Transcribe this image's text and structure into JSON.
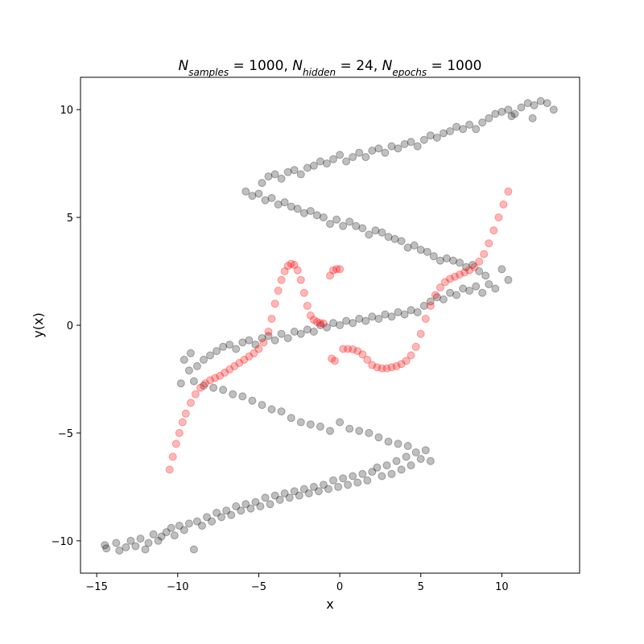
{
  "chart_data": {
    "type": "scatter",
    "title": {
      "parts": [
        {
          "base": "N",
          "sub": "samples",
          "eq": " = 1000, "
        },
        {
          "base": "N",
          "sub": "hidden",
          "eq": " = 24, "
        },
        {
          "base": "N",
          "sub": "epochs",
          "eq": " = 1000"
        }
      ]
    },
    "xlabel": "x",
    "ylabel": "y(x)",
    "xlim": [
      -16,
      14.8
    ],
    "ylim": [
      -11.5,
      11.5
    ],
    "xticks": [
      -15,
      -10,
      -5,
      0,
      5,
      10
    ],
    "yticks": [
      -10,
      -5,
      0,
      5,
      10
    ],
    "xtick_labels": [
      "−15",
      "−10",
      "−5",
      "0",
      "5",
      "10"
    ],
    "ytick_labels": [
      "−10",
      "−5",
      "0",
      "5",
      "10"
    ],
    "grid": false,
    "series": [
      {
        "color": "#000000",
        "alpha": 0.25,
        "points": [
          [
            -14.5,
            -10.2
          ],
          [
            -14.4,
            -10.35
          ],
          [
            -13.8,
            -10.1
          ],
          [
            -13.6,
            -10.45
          ],
          [
            -13.2,
            -10.3
          ],
          [
            -12.9,
            -10.0
          ],
          [
            -12.6,
            -10.25
          ],
          [
            -12.3,
            -9.9
          ],
          [
            -12.0,
            -10.4
          ],
          [
            -11.8,
            -10.1
          ],
          [
            -11.5,
            -9.7
          ],
          [
            -11.2,
            -10.0
          ],
          [
            -11.0,
            -9.8
          ],
          [
            -10.7,
            -9.6
          ],
          [
            -10.4,
            -9.4
          ],
          [
            -10.2,
            -9.75
          ],
          [
            -9.9,
            -9.3
          ],
          [
            -9.6,
            -9.5
          ],
          [
            -9.3,
            -9.2
          ],
          [
            -9.0,
            -10.4
          ],
          [
            -8.8,
            -9.1
          ],
          [
            -8.5,
            -9.3
          ],
          [
            -8.2,
            -8.9
          ],
          [
            -7.9,
            -9.1
          ],
          [
            -7.6,
            -8.7
          ],
          [
            -7.3,
            -8.9
          ],
          [
            -7.0,
            -8.6
          ],
          [
            -6.7,
            -8.8
          ],
          [
            -6.4,
            -8.4
          ],
          [
            -6.1,
            -8.6
          ],
          [
            -5.8,
            -8.3
          ],
          [
            -5.5,
            -8.5
          ],
          [
            -5.2,
            -8.2
          ],
          [
            -4.9,
            -8.4
          ],
          [
            -4.6,
            -8.0
          ],
          [
            -4.3,
            -8.3
          ],
          [
            -4.0,
            -7.9
          ],
          [
            -3.7,
            -8.1
          ],
          [
            -3.4,
            -7.8
          ],
          [
            -3.1,
            -8.0
          ],
          [
            -2.8,
            -7.7
          ],
          [
            -2.5,
            -7.9
          ],
          [
            -2.2,
            -7.6
          ],
          [
            -1.9,
            -7.8
          ],
          [
            -1.6,
            -7.5
          ],
          [
            -1.3,
            -7.7
          ],
          [
            -1.0,
            -7.4
          ],
          [
            -0.7,
            -7.6
          ],
          [
            -0.4,
            -7.2
          ],
          [
            -0.1,
            -7.5
          ],
          [
            0.2,
            -7.1
          ],
          [
            0.5,
            -7.4
          ],
          [
            0.8,
            -7.0
          ],
          [
            1.1,
            -7.3
          ],
          [
            1.4,
            -6.9
          ],
          [
            1.7,
            -7.2
          ],
          [
            2.0,
            -6.8
          ],
          [
            2.3,
            -6.6
          ],
          [
            2.6,
            -7.0
          ],
          [
            2.9,
            -6.5
          ],
          [
            3.2,
            -6.9
          ],
          [
            3.5,
            -6.3
          ],
          [
            3.8,
            -6.7
          ],
          [
            4.1,
            -6.1
          ],
          [
            4.4,
            -6.5
          ],
          [
            4.7,
            -5.9
          ],
          [
            5.0,
            -6.2
          ],
          [
            5.3,
            -5.8
          ],
          [
            5.6,
            -6.3
          ],
          [
            4.2,
            -5.6
          ],
          [
            3.6,
            -5.5
          ],
          [
            3.0,
            -5.4
          ],
          [
            2.4,
            -5.2
          ],
          [
            1.8,
            -5.0
          ],
          [
            1.2,
            -4.9
          ],
          [
            0.6,
            -4.8
          ],
          [
            0.0,
            -4.5
          ],
          [
            -0.6,
            -4.9
          ],
          [
            -1.2,
            -4.7
          ],
          [
            -1.8,
            -4.6
          ],
          [
            -2.4,
            -4.5
          ],
          [
            -3.0,
            -4.3
          ],
          [
            -3.6,
            -4.0
          ],
          [
            -4.2,
            -3.9
          ],
          [
            -4.8,
            -3.7
          ],
          [
            -5.4,
            -3.5
          ],
          [
            -6.0,
            -3.3
          ],
          [
            -6.6,
            -3.2
          ],
          [
            -7.2,
            -3.0
          ],
          [
            -7.8,
            -2.9
          ],
          [
            -8.4,
            -2.8
          ],
          [
            -9.0,
            -2.6
          ],
          [
            -9.3,
            -2.1
          ],
          [
            -9.8,
            -2.7
          ],
          [
            -9.6,
            -1.6
          ],
          [
            -9.2,
            -1.3
          ],
          [
            -8.8,
            -1.9
          ],
          [
            -8.4,
            -1.6
          ],
          [
            -8.0,
            -1.4
          ],
          [
            -7.6,
            -1.2
          ],
          [
            -7.2,
            -1.0
          ],
          [
            -6.8,
            -0.9
          ],
          [
            -6.4,
            -1.1
          ],
          [
            -6.0,
            -0.8
          ],
          [
            -5.6,
            -0.7
          ],
          [
            -5.2,
            -0.9
          ],
          [
            -4.8,
            -0.6
          ],
          [
            -4.4,
            -0.5
          ],
          [
            -4.0,
            -0.7
          ],
          [
            -3.6,
            -0.4
          ],
          [
            -3.2,
            -0.6
          ],
          [
            -2.8,
            -0.3
          ],
          [
            -2.4,
            -0.4
          ],
          [
            -2.0,
            -0.2
          ],
          [
            -1.6,
            -0.3
          ],
          [
            -1.2,
            0.0
          ],
          [
            -0.8,
            -0.1
          ],
          [
            -0.4,
            0.1
          ],
          [
            0.0,
            0.0
          ],
          [
            0.4,
            0.2
          ],
          [
            0.8,
            0.1
          ],
          [
            1.2,
            0.3
          ],
          [
            1.6,
            0.2
          ],
          [
            2.0,
            0.4
          ],
          [
            2.4,
            0.3
          ],
          [
            2.8,
            0.5
          ],
          [
            3.2,
            0.4
          ],
          [
            3.6,
            0.6
          ],
          [
            4.0,
            0.5
          ],
          [
            4.4,
            0.7
          ],
          [
            4.8,
            0.6
          ],
          [
            5.2,
            0.9
          ],
          [
            5.6,
            1.1
          ],
          [
            6.0,
            1.3
          ],
          [
            6.4,
            1.2
          ],
          [
            6.8,
            1.5
          ],
          [
            7.2,
            1.4
          ],
          [
            7.6,
            1.7
          ],
          [
            8.0,
            1.6
          ],
          [
            8.4,
            1.8
          ],
          [
            8.8,
            1.5
          ],
          [
            9.2,
            1.9
          ],
          [
            9.6,
            1.7
          ],
          [
            10.0,
            2.6
          ],
          [
            10.4,
            2.1
          ],
          [
            9.0,
            2.3
          ],
          [
            8.6,
            2.5
          ],
          [
            8.2,
            2.8
          ],
          [
            7.8,
            2.7
          ],
          [
            7.4,
            2.9
          ],
          [
            7.0,
            3.0
          ],
          [
            6.6,
            3.1
          ],
          [
            6.2,
            3.0
          ],
          [
            5.8,
            3.2
          ],
          [
            5.4,
            3.4
          ],
          [
            5.0,
            3.5
          ],
          [
            4.6,
            3.7
          ],
          [
            4.2,
            3.6
          ],
          [
            3.8,
            3.9
          ],
          [
            3.4,
            4.0
          ],
          [
            3.0,
            4.1
          ],
          [
            2.6,
            4.3
          ],
          [
            2.2,
            4.4
          ],
          [
            1.8,
            4.2
          ],
          [
            1.4,
            4.5
          ],
          [
            1.0,
            4.6
          ],
          [
            0.6,
            4.8
          ],
          [
            0.2,
            4.6
          ],
          [
            -0.2,
            4.9
          ],
          [
            -0.6,
            4.7
          ],
          [
            -1.0,
            5.0
          ],
          [
            -1.4,
            5.1
          ],
          [
            -1.8,
            5.3
          ],
          [
            -2.2,
            5.2
          ],
          [
            -2.6,
            5.4
          ],
          [
            -3.0,
            5.5
          ],
          [
            -3.4,
            5.7
          ],
          [
            -3.8,
            5.6
          ],
          [
            -4.2,
            5.9
          ],
          [
            -4.6,
            5.8
          ],
          [
            -5.0,
            6.1
          ],
          [
            -5.8,
            6.2
          ],
          [
            -5.4,
            6.0
          ],
          [
            -4.8,
            6.6
          ],
          [
            -4.4,
            6.9
          ],
          [
            -4.0,
            7.0
          ],
          [
            -3.6,
            6.8
          ],
          [
            -3.2,
            7.1
          ],
          [
            -2.8,
            7.2
          ],
          [
            -2.4,
            7.0
          ],
          [
            -2.0,
            7.3
          ],
          [
            -1.6,
            7.4
          ],
          [
            -1.2,
            7.6
          ],
          [
            -0.8,
            7.5
          ],
          [
            -0.4,
            7.7
          ],
          [
            0.0,
            7.9
          ],
          [
            0.4,
            7.6
          ],
          [
            0.8,
            7.8
          ],
          [
            1.2,
            8.0
          ],
          [
            1.6,
            7.8
          ],
          [
            2.0,
            8.1
          ],
          [
            2.4,
            8.2
          ],
          [
            2.8,
            8.0
          ],
          [
            3.2,
            8.3
          ],
          [
            3.6,
            8.2
          ],
          [
            4.0,
            8.4
          ],
          [
            4.4,
            8.5
          ],
          [
            4.8,
            8.3
          ],
          [
            5.2,
            8.6
          ],
          [
            5.6,
            8.8
          ],
          [
            6.0,
            8.7
          ],
          [
            6.4,
            8.9
          ],
          [
            6.8,
            9.0
          ],
          [
            7.2,
            9.2
          ],
          [
            7.6,
            9.1
          ],
          [
            8.0,
            9.3
          ],
          [
            8.4,
            9.1
          ],
          [
            8.8,
            9.4
          ],
          [
            9.2,
            9.6
          ],
          [
            9.6,
            9.8
          ],
          [
            10.0,
            9.9
          ],
          [
            10.4,
            10.0
          ],
          [
            10.8,
            9.8
          ],
          [
            11.2,
            10.1
          ],
          [
            11.6,
            10.3
          ],
          [
            12.0,
            10.2
          ],
          [
            12.4,
            10.4
          ],
          [
            12.8,
            10.3
          ],
          [
            13.2,
            10.0
          ],
          [
            11.9,
            9.6
          ],
          [
            10.6,
            9.7
          ]
        ]
      },
      {
        "color": "#ff0000",
        "alpha": 0.28,
        "points": [
          [
            -10.5,
            -6.7
          ],
          [
            -10.3,
            -6.1
          ],
          [
            -10.1,
            -5.5
          ],
          [
            -9.9,
            -5.0
          ],
          [
            -9.7,
            -4.5
          ],
          [
            -9.5,
            -4.1
          ],
          [
            -9.2,
            -3.6
          ],
          [
            -8.9,
            -3.2
          ],
          [
            -8.6,
            -2.9
          ],
          [
            -8.3,
            -2.7
          ],
          [
            -8.0,
            -2.55
          ],
          [
            -7.7,
            -2.45
          ],
          [
            -7.4,
            -2.35
          ],
          [
            -7.1,
            -2.2
          ],
          [
            -6.8,
            -2.05
          ],
          [
            -6.5,
            -1.9
          ],
          [
            -6.2,
            -1.75
          ],
          [
            -5.9,
            -1.6
          ],
          [
            -5.6,
            -1.45
          ],
          [
            -5.3,
            -1.3
          ],
          [
            -5.0,
            -1.1
          ],
          [
            -4.7,
            -0.8
          ],
          [
            -4.4,
            -0.3
          ],
          [
            -4.2,
            0.3
          ],
          [
            -4.0,
            1.0
          ],
          [
            -3.8,
            1.6
          ],
          [
            -3.6,
            2.1
          ],
          [
            -3.4,
            2.5
          ],
          [
            -3.2,
            2.75
          ],
          [
            -3.0,
            2.85
          ],
          [
            -2.8,
            2.8
          ],
          [
            -2.6,
            2.55
          ],
          [
            -2.4,
            2.1
          ],
          [
            -2.2,
            1.5
          ],
          [
            -2.0,
            0.9
          ],
          [
            -1.8,
            0.45
          ],
          [
            -1.6,
            0.25
          ],
          [
            -1.4,
            0.15
          ],
          [
            -1.2,
            0.1
          ],
          [
            -1.0,
            0.08
          ],
          [
            -0.6,
            2.3
          ],
          [
            -0.4,
            2.55
          ],
          [
            -0.2,
            2.6
          ],
          [
            0.0,
            2.6
          ],
          [
            -0.5,
            -1.55
          ],
          [
            -0.3,
            -1.65
          ],
          [
            0.2,
            -1.1
          ],
          [
            0.5,
            -1.1
          ],
          [
            0.8,
            -1.12
          ],
          [
            1.1,
            -1.2
          ],
          [
            1.4,
            -1.35
          ],
          [
            1.7,
            -1.6
          ],
          [
            2.0,
            -1.85
          ],
          [
            2.3,
            -1.95
          ],
          [
            2.6,
            -2.0
          ],
          [
            2.9,
            -2.0
          ],
          [
            3.2,
            -1.95
          ],
          [
            3.5,
            -1.9
          ],
          [
            3.8,
            -1.8
          ],
          [
            4.1,
            -1.65
          ],
          [
            4.4,
            -1.4
          ],
          [
            4.7,
            -1.0
          ],
          [
            5.0,
            -0.4
          ],
          [
            5.3,
            0.3
          ],
          [
            5.6,
            0.9
          ],
          [
            5.9,
            1.4
          ],
          [
            6.2,
            1.75
          ],
          [
            6.5,
            2.0
          ],
          [
            6.8,
            2.15
          ],
          [
            7.1,
            2.25
          ],
          [
            7.4,
            2.35
          ],
          [
            7.7,
            2.45
          ],
          [
            8.0,
            2.55
          ],
          [
            8.3,
            2.7
          ],
          [
            8.6,
            2.95
          ],
          [
            8.9,
            3.3
          ],
          [
            9.2,
            3.8
          ],
          [
            9.5,
            4.4
          ],
          [
            9.8,
            5.0
          ],
          [
            10.1,
            5.6
          ],
          [
            10.4,
            6.2
          ]
        ]
      }
    ]
  }
}
